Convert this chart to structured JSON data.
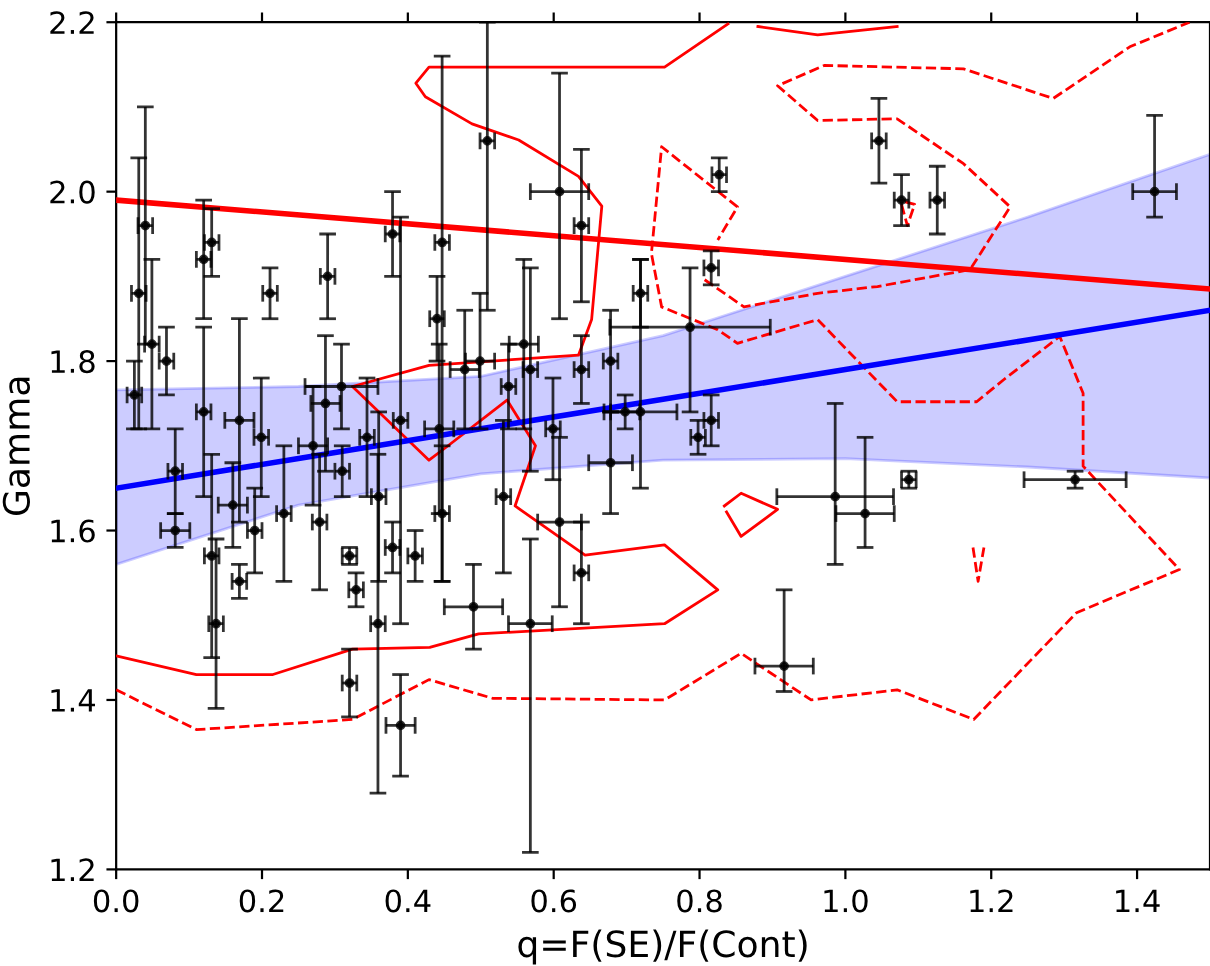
{
  "chart_data": {
    "type": "scatter",
    "xlabel": "q=F(SE)/F(Cont)",
    "ylabel": "Gamma",
    "xlim": [
      0,
      1.5
    ],
    "ylim": [
      1.2,
      2.2
    ],
    "xticks": [
      {
        "value": 0,
        "label": "0.0"
      },
      0.2,
      0.4,
      0.6,
      0.8,
      {
        "value": 1,
        "label": "1.0"
      },
      1.2,
      1.4
    ],
    "yticks": [
      1.2,
      1.4,
      1.6,
      1.8,
      {
        "value": 2,
        "label": "2.0"
      },
      2.2
    ],
    "marker": "none",
    "series": [
      {
        "type": "line",
        "color": "#ff0000",
        "line_style": "solid",
        "x": [
          0,
          0.11,
          0.215,
          0.324,
          0.43,
          0.497,
          0.752,
          0.825,
          0.752,
          0.643,
          0.547,
          0.575,
          0.536,
          0.452,
          0.429,
          0.324,
          0.429,
          0.634,
          0.652,
          0.666,
          0.634,
          0.552,
          0.488,
          0.424,
          0.411,
          0.429,
          0.752,
          0.839
        ],
        "values": [
          1.452,
          1.43,
          1.43,
          1.46,
          1.462,
          1.478,
          1.49,
          1.53,
          1.583,
          1.571,
          1.629,
          1.7,
          1.754,
          1.698,
          1.683,
          1.77,
          1.795,
          1.807,
          1.849,
          1.983,
          2.018,
          2.061,
          2.08,
          2.112,
          2.128,
          2.147,
          2.147,
          2.198
        ]
      },
      {
        "type": "line",
        "color": "#ff0000",
        "line_style": "solid",
        "x": [
          0.88,
          0.962,
          1.071
        ],
        "values": [
          2.195,
          2.185,
          2.195
        ]
      },
      {
        "type": "line",
        "color": "#ff0000",
        "line_style": "solid",
        "x": [
          0.834,
          0.857,
          0.907,
          0.857,
          0.837
        ],
        "values": [
          1.629,
          1.644,
          1.625,
          1.593,
          1.622
        ]
      },
      {
        "type": "line",
        "color": "#ff0000",
        "line_style": "dashed",
        "x": [
          0,
          0.11,
          0.324,
          0.429,
          0.516,
          0.752,
          0.857,
          0.953,
          1.071,
          1.176,
          1.317,
          1.458,
          1.326,
          1.326,
          1.294,
          1.217,
          1.18,
          1.071,
          0.962,
          0.852,
          0.825,
          0.748,
          0.734,
          0.748,
          0.852,
          0.825
        ],
        "values": [
          1.412,
          1.365,
          1.377,
          1.424,
          1.402,
          1.4,
          1.455,
          1.4,
          1.412,
          1.377,
          1.503,
          1.554,
          1.676,
          1.762,
          1.829,
          1.778,
          1.752,
          1.752,
          1.849,
          1.821,
          1.837,
          1.864,
          1.927,
          2.053,
          1.982,
          1.943
        ]
      },
      {
        "type": "line",
        "color": "#ff0000",
        "line_style": "dashed",
        "x": [
          0.807,
          0.861,
          0.962,
          1.044,
          1.171,
          1.226,
          1.162,
          1.071,
          0.962,
          0.907,
          0.971,
          1.162,
          1.285,
          1.39,
          1.472
        ],
        "values": [
          1.896,
          1.864,
          1.88,
          1.888,
          1.908,
          1.982,
          2.033,
          2.086,
          2.084,
          2.125,
          2.149,
          2.145,
          2.11,
          2.171,
          2.2
        ]
      },
      {
        "type": "line",
        "color": "#ff0000",
        "line_style": "dashed",
        "x": [
          1.077,
          1.085,
          1.095,
          1.082
        ],
        "values": [
          1.985,
          1.96,
          1.985,
          1.988
        ]
      },
      {
        "type": "line",
        "color": "#ff0000",
        "line_style": "dashed",
        "x": [
          1.175,
          1.182,
          1.19
        ],
        "values": [
          1.58,
          1.54,
          1.58
        ]
      },
      {
        "type": "line",
        "color": "#ff0000",
        "line_style": "solid",
        "x": [
          0,
          1.5
        ],
        "values": [
          1.99,
          1.885
        ]
      },
      {
        "type": "line",
        "color": "#0000ff",
        "line_style": "solid",
        "x": [
          0,
          0.25,
          0.5,
          0.75,
          1.0,
          1.25,
          1.5
        ],
        "values": [
          1.65,
          1.685,
          1.72,
          1.755,
          1.79,
          1.825,
          1.86
        ],
        "lower": [
          1.56,
          1.63,
          1.667,
          1.683,
          1.685,
          1.675,
          1.662
        ],
        "upper": [
          1.766,
          1.77,
          1.782,
          1.83,
          1.9,
          1.97,
          2.044
        ]
      },
      {
        "color": "#000000",
        "marker": "circle",
        "x": [
          0.025,
          0.031,
          0.04,
          0.049,
          0.069,
          0.081,
          0.081,
          0.12,
          0.12,
          0.131,
          0.131,
          0.137,
          0.16,
          0.169,
          0.169,
          0.19,
          0.199,
          0.211,
          0.23,
          0.27,
          0.279,
          0.29,
          0.287,
          0.309,
          0.31,
          0.32,
          0.32,
          0.329,
          0.344,
          0.359,
          0.36,
          0.379,
          0.39,
          0.39,
          0.379,
          0.41,
          0.44,
          0.447,
          0.443,
          0.447,
          0.49,
          0.478,
          0.509,
          0.499,
          0.531,
          0.538,
          0.559,
          0.568,
          0.568,
          0.599,
          0.608,
          0.608,
          0.638,
          0.638,
          0.638,
          0.678,
          0.678,
          0.698,
          0.719,
          0.719,
          0.787,
          0.798,
          0.816,
          0.816,
          0.827,
          0.986,
          1.027,
          0.916,
          1.046,
          1.077,
          1.126,
          1.087,
          1.315,
          1.424
        ],
        "values": [
          1.76,
          1.88,
          1.96,
          1.82,
          1.8,
          1.67,
          1.6,
          1.92,
          1.74,
          1.94,
          1.57,
          1.49,
          1.63,
          1.73,
          1.54,
          1.6,
          1.71,
          1.88,
          1.62,
          1.7,
          1.61,
          1.9,
          1.75,
          1.77,
          1.67,
          1.57,
          1.42,
          1.53,
          1.71,
          1.49,
          1.64,
          1.95,
          1.73,
          1.37,
          1.58,
          1.57,
          1.85,
          1.94,
          1.72,
          1.62,
          1.51,
          1.79,
          2.06,
          1.8,
          1.64,
          1.77,
          1.82,
          1.79,
          1.49,
          1.72,
          2.0,
          1.61,
          1.96,
          1.79,
          1.55,
          1.8,
          1.68,
          1.74,
          1.88,
          1.74,
          1.84,
          1.71,
          1.73,
          1.91,
          2.02,
          1.64,
          1.62,
          1.44,
          2.06,
          1.99,
          1.99,
          1.66,
          1.66,
          2.0
        ],
        "errors": [
          0.04,
          0.16,
          0.14,
          0.1,
          0.04,
          0.05,
          0.02,
          0.07,
          0.1,
          0.04,
          0.12,
          0.1,
          0.05,
          0.12,
          0.02,
          0.05,
          0.07,
          0.03,
          0.08,
          0.07,
          0.08,
          0.05,
          0.08,
          0.05,
          0.03,
          0.01,
          0.04,
          0.02,
          0.07,
          0.2,
          0.1,
          0.05,
          0.24,
          0.06,
          0.03,
          0.03,
          0.05,
          [
            1.54,
            2.16
          ],
          0.1,
          0.08,
          0.05,
          0.07,
          [
            1.86,
            2.2
          ],
          0.08,
          0.09,
          0.05,
          0.1,
          0.12,
          [
            1.22,
            1.59
          ],
          0.06,
          [
            1.85,
            2.14
          ],
          0.1,
          0.09,
          0.04,
          0.06,
          0.06,
          0.06,
          0.02,
          0.04,
          [
            1.65,
            1.92
          ],
          [
            1.74,
            1.91
          ],
          0.02,
          0.03,
          0.02,
          0.02,
          [
            1.56,
            1.75
          ],
          [
            1.58,
            1.71
          ],
          [
            1.41,
            1.53
          ],
          0.05,
          0.03,
          0.04,
          0.01,
          0.01,
          [
            1.97,
            2.09
          ]
        ],
        "xerrors": [
          0.01,
          0.01,
          0.01,
          0.01,
          0.01,
          0.01,
          0.02,
          0.01,
          0.01,
          0.01,
          0.01,
          0.01,
          0.02,
          0.02,
          0.01,
          0.01,
          0.01,
          0.01,
          0.01,
          0.02,
          0.01,
          0.01,
          0.02,
          0.05,
          0.01,
          0.01,
          0.01,
          0.01,
          0.01,
          0.01,
          0.01,
          0.01,
          0.01,
          0.02,
          0.01,
          0.01,
          0.01,
          0.01,
          0.02,
          0.01,
          0.04,
          0.02,
          0.01,
          0.02,
          0.01,
          0.01,
          0.02,
          0.01,
          0.03,
          0.01,
          0.04,
          0.03,
          0.01,
          0.01,
          0.01,
          0.01,
          0.03,
          0.02,
          0.01,
          0.05,
          0.11,
          0.01,
          0.01,
          0.01,
          0.01,
          0.08,
          0.04,
          0.04,
          0.01,
          0.01,
          0.01,
          0.01,
          0.07,
          0.03
        ]
      }
    ]
  }
}
